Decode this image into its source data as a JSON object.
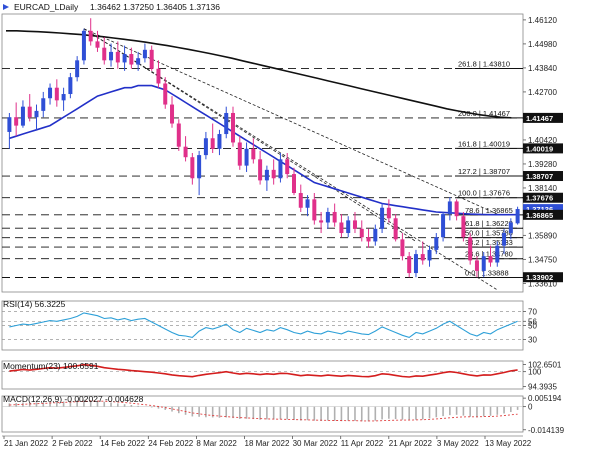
{
  "header": {
    "symbol": "EURCAD_LDaily",
    "ohlc": "1.36462 1.37250 1.36405 1.37136"
  },
  "colors": {
    "bull": "#2f4fd6",
    "bear": "#e0308a",
    "sma50": "#2230c8",
    "sma200": "#111111",
    "rsi": "#2ea0d8",
    "momentum": "#d41e1e",
    "macd_signal": "#e04040",
    "macd_hist": "#b0b0b0"
  },
  "chart_data": [
    {
      "type": "candlestick",
      "name": "price",
      "title": "EURCAD_LDaily",
      "ylim": [
        1.332,
        1.464
      ],
      "x": [
        "21 Jan 2022",
        "2 Feb 2022",
        "14 Feb 2022",
        "24 Feb 2022",
        "8 Mar 2022",
        "18 Mar 2022",
        "30 Mar 2022",
        "11 Apr 2022",
        "21 Apr 2022",
        "3 May 2022",
        "13 May 2022"
      ],
      "y_ticks": [
        1.4612,
        1.4498,
        1.4384,
        1.427,
        1.41467,
        1.4042,
        1.40019,
        1.3928,
        1.38707,
        1.3814,
        1.37676,
        1.37136,
        1.36865,
        1.3589,
        1.3475,
        1.3361
      ],
      "ohlc_candles": [
        [
          1.408,
          1.417,
          1.4,
          1.415
        ],
        [
          1.415,
          1.422,
          1.406,
          1.411
        ],
        [
          1.411,
          1.423,
          1.41,
          1.42
        ],
        [
          1.42,
          1.426,
          1.413,
          1.415
        ],
        [
          1.415,
          1.421,
          1.409,
          1.418
        ],
        [
          1.418,
          1.427,
          1.415,
          1.424
        ],
        [
          1.424,
          1.431,
          1.421,
          1.429
        ],
        [
          1.429,
          1.433,
          1.42,
          1.423
        ],
        [
          1.423,
          1.429,
          1.418,
          1.426
        ],
        [
          1.426,
          1.436,
          1.424,
          1.434
        ],
        [
          1.434,
          1.444,
          1.432,
          1.442
        ],
        [
          1.442,
          1.457,
          1.44,
          1.456
        ],
        [
          1.456,
          1.462,
          1.449,
          1.451
        ],
        [
          1.451,
          1.456,
          1.446,
          1.448
        ],
        [
          1.448,
          1.453,
          1.44,
          1.442
        ],
        [
          1.442,
          1.45,
          1.439,
          1.446
        ],
        [
          1.446,
          1.451,
          1.438,
          1.441
        ],
        [
          1.441,
          1.449,
          1.437,
          1.445
        ],
        [
          1.445,
          1.448,
          1.438,
          1.44
        ],
        [
          1.44,
          1.446,
          1.437,
          1.443
        ],
        [
          1.443,
          1.45,
          1.441,
          1.447
        ],
        [
          1.447,
          1.449,
          1.437,
          1.438
        ],
        [
          1.438,
          1.442,
          1.429,
          1.431
        ],
        [
          1.431,
          1.434,
          1.419,
          1.421
        ],
        [
          1.421,
          1.425,
          1.41,
          1.412
        ],
        [
          1.412,
          1.414,
          1.399,
          1.401
        ],
        [
          1.401,
          1.406,
          1.394,
          1.396
        ],
        [
          1.396,
          1.398,
          1.383,
          1.386
        ],
        [
          1.386,
          1.399,
          1.378,
          1.397
        ],
        [
          1.397,
          1.408,
          1.395,
          1.405
        ],
        [
          1.405,
          1.412,
          1.398,
          1.4
        ],
        [
          1.4,
          1.409,
          1.397,
          1.407
        ],
        [
          1.407,
          1.42,
          1.405,
          1.417
        ],
        [
          1.417,
          1.42,
          1.401,
          1.403
        ],
        [
          1.403,
          1.406,
          1.39,
          1.392
        ],
        [
          1.392,
          1.403,
          1.389,
          1.4
        ],
        [
          1.4,
          1.405,
          1.393,
          1.395
        ],
        [
          1.395,
          1.399,
          1.383,
          1.385
        ],
        [
          1.385,
          1.392,
          1.38,
          1.39
        ],
        [
          1.39,
          1.395,
          1.383,
          1.386
        ],
        [
          1.386,
          1.398,
          1.384,
          1.395
        ],
        [
          1.395,
          1.398,
          1.386,
          1.388
        ],
        [
          1.388,
          1.391,
          1.378,
          1.379
        ],
        [
          1.379,
          1.383,
          1.37,
          1.372
        ],
        [
          1.372,
          1.378,
          1.368,
          1.376
        ],
        [
          1.376,
          1.379,
          1.364,
          1.366
        ],
        [
          1.366,
          1.37,
          1.36,
          1.365
        ],
        [
          1.365,
          1.372,
          1.362,
          1.37
        ],
        [
          1.37,
          1.374,
          1.363,
          1.365
        ],
        [
          1.365,
          1.369,
          1.358,
          1.36
        ],
        [
          1.36,
          1.368,
          1.358,
          1.366
        ],
        [
          1.366,
          1.37,
          1.36,
          1.362
        ],
        [
          1.362,
          1.366,
          1.356,
          1.358
        ],
        [
          1.358,
          1.362,
          1.353,
          1.356
        ],
        [
          1.356,
          1.364,
          1.354,
          1.362
        ],
        [
          1.362,
          1.374,
          1.36,
          1.372
        ],
        [
          1.372,
          1.376,
          1.365,
          1.367
        ],
        [
          1.367,
          1.369,
          1.356,
          1.357
        ],
        [
          1.357,
          1.36,
          1.347,
          1.349
        ],
        [
          1.349,
          1.351,
          1.339,
          1.341
        ],
        [
          1.341,
          1.352,
          1.339,
          1.35
        ],
        [
          1.35,
          1.356,
          1.345,
          1.347
        ],
        [
          1.347,
          1.354,
          1.344,
          1.352
        ],
        [
          1.352,
          1.36,
          1.35,
          1.358
        ],
        [
          1.358,
          1.37,
          1.356,
          1.369
        ],
        [
          1.369,
          1.377,
          1.366,
          1.375
        ],
        [
          1.375,
          1.376,
          1.366,
          1.368
        ],
        [
          1.368,
          1.37,
          1.356,
          1.358
        ],
        [
          1.358,
          1.36,
          1.345,
          1.347
        ],
        [
          1.347,
          1.349,
          1.339,
          1.342
        ],
        [
          1.342,
          1.351,
          1.339,
          1.349
        ],
        [
          1.349,
          1.354,
          1.344,
          1.346
        ],
        [
          1.346,
          1.356,
          1.344,
          1.354
        ],
        [
          1.354,
          1.362,
          1.35,
          1.36
        ],
        [
          1.36,
          1.367,
          1.357,
          1.365
        ],
        [
          1.3646,
          1.3725,
          1.364,
          1.3714
        ]
      ],
      "sma50": [
        1.405,
        1.406,
        1.407,
        1.408,
        1.409,
        1.41,
        1.411,
        1.413,
        1.415,
        1.417,
        1.419,
        1.421,
        1.423,
        1.425,
        1.426,
        1.427,
        1.428,
        1.429,
        1.429,
        1.43,
        1.43,
        1.43,
        1.429,
        1.428,
        1.426,
        1.424,
        1.422,
        1.42,
        1.418,
        1.416,
        1.414,
        1.412,
        1.41,
        1.408,
        1.406,
        1.404,
        1.402,
        1.4,
        1.398,
        1.396,
        1.394,
        1.392,
        1.39,
        1.388,
        1.386,
        1.384,
        1.383,
        1.382,
        1.381,
        1.38,
        1.379,
        1.378,
        1.377,
        1.376,
        1.375,
        1.374,
        1.3735,
        1.373,
        1.3725,
        1.372,
        1.3715,
        1.371,
        1.3705,
        1.37,
        1.3698,
        1.3696,
        1.3694,
        1.3692,
        1.369,
        1.3689,
        1.3688,
        1.3687,
        1.3687,
        1.3687,
        1.3687,
        1.3687
      ],
      "sma200": [
        1.456,
        1.456,
        1.4558,
        1.4556,
        1.4553,
        1.455,
        1.4546,
        1.4542,
        1.4537,
        1.4532,
        1.4526,
        1.452,
        1.4513,
        1.4506,
        1.4498,
        1.449,
        1.4481,
        1.4472,
        1.4462,
        1.4452,
        1.4441,
        1.443,
        1.4418,
        1.4406,
        1.4394,
        1.4382,
        1.437,
        1.4358,
        1.4346,
        1.4334,
        1.4322,
        1.431,
        1.4298,
        1.4286,
        1.4274,
        1.4262,
        1.425,
        1.4238,
        1.4226,
        1.4214,
        1.4202,
        1.419,
        1.418,
        1.4171,
        1.4162,
        1.4155,
        1.415,
        1.4147
      ],
      "trendlines": [
        {
          "from": [
            11,
            1.457
          ],
          "to": [
            72,
            1.369
          ]
        },
        {
          "from": [
            11,
            1.457
          ],
          "to": [
            60,
            1.356
          ]
        },
        {
          "from": [
            11,
            1.457
          ],
          "to": [
            72,
            1.333
          ]
        }
      ],
      "fib_levels": [
        {
          "label": "261.8 | 1.43810",
          "value": 1.4381
        },
        {
          "label": "200.0 | 1.41467",
          "value": 1.41467
        },
        {
          "label": "161.8 | 1.40019",
          "value": 1.40019
        },
        {
          "label": "127.2 | 1.38707",
          "value": 1.38707
        },
        {
          "label": "100.0 | 1.37676",
          "value": 1.37676
        },
        {
          "label": "78.6 | 1.36865",
          "value": 1.36865
        },
        {
          "label": "61.8 | 1.36228",
          "value": 1.36228
        },
        {
          "label": "50.0 | 1.35780",
          "value": 1.3578
        },
        {
          "label": "38.2 | 1.35333",
          "value": 1.35333
        },
        {
          "label": "23.6 | 1.34780",
          "value": 1.3478
        },
        {
          "label": "0.0 | 1.33888",
          "value": 1.33888
        }
      ],
      "price_tags": [
        {
          "label": "1.41467",
          "value": 1.41467,
          "color": "#111111"
        },
        {
          "label": "1.40019",
          "value": 1.40019,
          "color": "#111111"
        },
        {
          "label": "1.38707",
          "value": 1.38707,
          "color": "#111111"
        },
        {
          "label": "1.37676",
          "value": 1.37676,
          "color": "#111111"
        },
        {
          "label": "1.37136",
          "value": 1.37136,
          "color": "#2f4fd6"
        },
        {
          "label": "1.36865",
          "value": 1.36865,
          "color": "#111111"
        },
        {
          "label": "1.33902",
          "value": 1.33902,
          "color": "#111111"
        }
      ]
    },
    {
      "type": "line",
      "name": "rsi",
      "title": "RSI(14) 56.3225",
      "ylim": [
        15,
        85
      ],
      "y_ticks": [
        70,
        56,
        50,
        30
      ],
      "values": [
        48,
        50,
        52,
        51,
        53,
        55,
        57,
        56,
        58,
        60,
        63,
        68,
        66,
        64,
        60,
        61,
        58,
        60,
        57,
        59,
        60,
        55,
        50,
        45,
        40,
        36,
        35,
        33,
        42,
        47,
        45,
        48,
        52,
        44,
        40,
        46,
        43,
        40,
        44,
        42,
        47,
        44,
        40,
        38,
        42,
        39,
        38,
        42,
        40,
        38,
        42,
        40,
        38,
        37,
        42,
        48,
        44,
        40,
        36,
        33,
        40,
        38,
        42,
        46,
        52,
        56,
        50,
        44,
        38,
        35,
        40,
        38,
        44,
        48,
        52,
        56
      ]
    },
    {
      "type": "line",
      "name": "momentum",
      "title": "Momentum(23) 100.6591",
      "ylim": [
        93.5,
        104.0
      ],
      "y_ticks": [
        102.6501,
        100,
        94.3935
      ],
      "values": [
        100.2,
        100.5,
        100.8,
        100.6,
        100.9,
        101.2,
        101.5,
        101.3,
        101.6,
        101.9,
        102.2,
        102.6,
        102.4,
        102.0,
        101.5,
        101.2,
        100.9,
        100.7,
        100.4,
        100.2,
        100.0,
        99.8,
        99.5,
        99.2,
        98.8,
        98.5,
        98.3,
        98.1,
        98.6,
        99.0,
        99.3,
        99.6,
        100.0,
        99.5,
        99.1,
        99.4,
        99.2,
        98.9,
        99.2,
        99.0,
        99.4,
        99.3,
        98.9,
        98.5,
        98.8,
        98.6,
        98.4,
        98.7,
        98.5,
        98.3,
        98.6,
        98.4,
        98.2,
        98.1,
        98.5,
        99.2,
        99.0,
        98.6,
        98.2,
        98.0,
        98.4,
        98.3,
        98.7,
        99.1,
        99.6,
        100.0,
        99.7,
        99.2,
        98.7,
        98.4,
        98.8,
        98.7,
        99.2,
        99.7,
        100.3,
        100.66
      ]
    },
    {
      "type": "bar",
      "name": "macd",
      "title": "MACD(12,26,9) -0.002027 -0.004628",
      "ylim": [
        -0.0155,
        0.0065
      ],
      "y_ticks": [
        0.005194,
        0,
        -0.014139
      ],
      "hist": [
        0.002,
        0.0022,
        0.0025,
        0.0024,
        0.0026,
        0.0028,
        0.0031,
        0.003,
        0.0032,
        0.0035,
        0.0038,
        0.0042,
        0.004,
        0.0036,
        0.003,
        0.0025,
        0.002,
        0.0015,
        0.001,
        0.0005,
        0.0,
        -0.0005,
        -0.0012,
        -0.002,
        -0.003,
        -0.004,
        -0.005,
        -0.006,
        -0.0062,
        -0.0065,
        -0.0066,
        -0.0068,
        -0.0066,
        -0.007,
        -0.0075,
        -0.0074,
        -0.0076,
        -0.008,
        -0.0078,
        -0.0079,
        -0.0077,
        -0.0078,
        -0.0082,
        -0.0085,
        -0.0083,
        -0.0086,
        -0.0088,
        -0.0085,
        -0.0087,
        -0.0089,
        -0.0086,
        -0.0087,
        -0.0089,
        -0.009,
        -0.0086,
        -0.0078,
        -0.0074,
        -0.0076,
        -0.008,
        -0.0084,
        -0.008,
        -0.0078,
        -0.0072,
        -0.0065,
        -0.0058,
        -0.0052,
        -0.005,
        -0.0055,
        -0.0062,
        -0.0066,
        -0.006,
        -0.0056,
        -0.005,
        -0.0042,
        -0.0033,
        -0.002
      ],
      "signal": [
        0.001,
        0.0012,
        0.0014,
        0.0016,
        0.0018,
        0.002,
        0.0022,
        0.0024,
        0.0026,
        0.0028,
        0.003,
        0.0032,
        0.0034,
        0.0034,
        0.0033,
        0.0031,
        0.0028,
        0.0025,
        0.0021,
        0.0017,
        0.0012,
        0.0007,
        0.0001,
        -0.0006,
        -0.0014,
        -0.0022,
        -0.003,
        -0.0038,
        -0.0044,
        -0.005,
        -0.0054,
        -0.0058,
        -0.0061,
        -0.0064,
        -0.0067,
        -0.0069,
        -0.0071,
        -0.0073,
        -0.0075,
        -0.0076,
        -0.0077,
        -0.0078,
        -0.0079,
        -0.008,
        -0.0081,
        -0.0082,
        -0.0083,
        -0.0084,
        -0.0085,
        -0.0085,
        -0.0086,
        -0.0086,
        -0.0087,
        -0.0087,
        -0.0087,
        -0.0086,
        -0.0084,
        -0.0083,
        -0.0082,
        -0.0082,
        -0.0081,
        -0.008,
        -0.0078,
        -0.0075,
        -0.0072,
        -0.0068,
        -0.0065,
        -0.0063,
        -0.0062,
        -0.0062,
        -0.0061,
        -0.006,
        -0.0058,
        -0.0055,
        -0.005,
        -0.0046
      ]
    }
  ]
}
